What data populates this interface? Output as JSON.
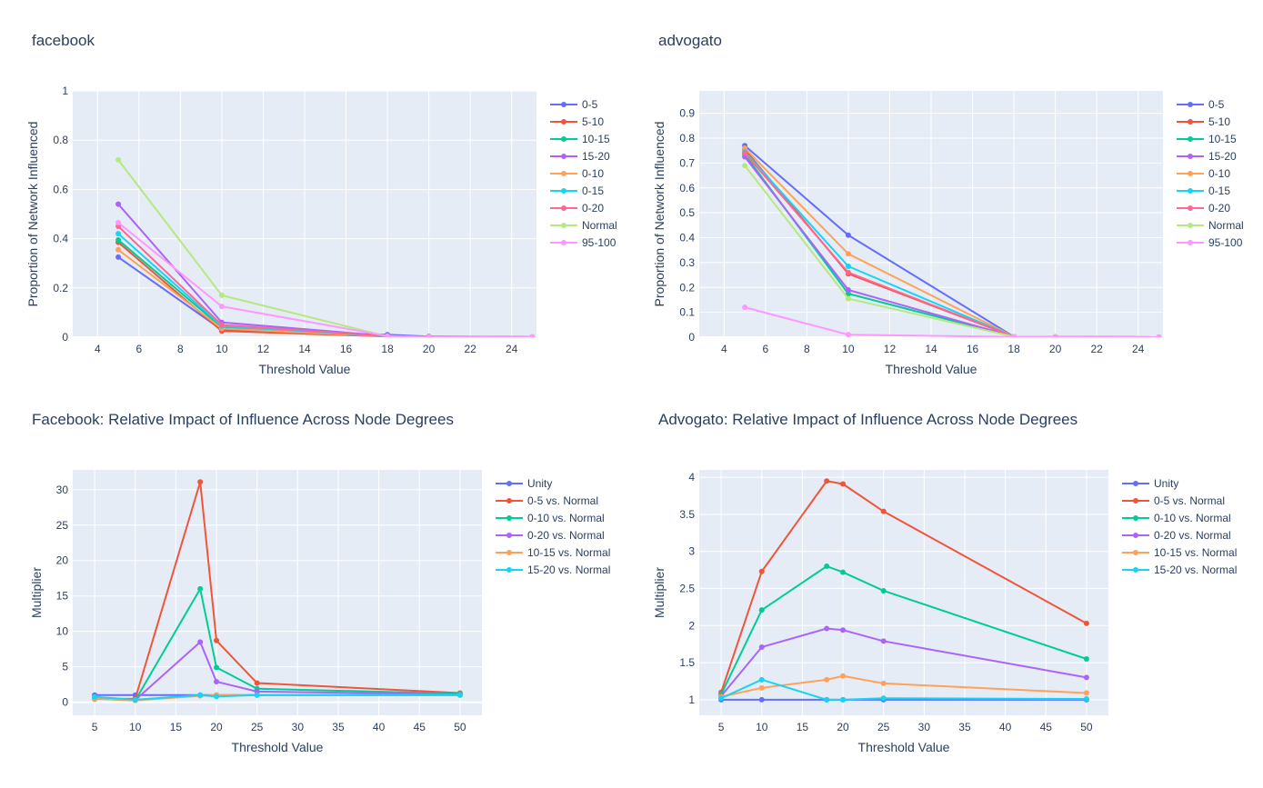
{
  "chart_data": [
    {
      "type": "line",
      "title": "facebook",
      "xlabel": "Threshold Value",
      "ylabel": "Proportion of Network Influenced",
      "xlim": [
        2.8,
        25.2
      ],
      "ylim": [
        0,
        1
      ],
      "xticks": [
        4,
        6,
        8,
        10,
        12,
        14,
        16,
        18,
        20,
        22,
        24
      ],
      "yticks": [
        0,
        0.2,
        0.4,
        0.6,
        0.8,
        1
      ],
      "ytick_labels": [
        "0",
        "0.2",
        "0.4",
        "0.6",
        "0.8",
        "1"
      ],
      "grid": true,
      "legend": "right",
      "x": [
        5,
        10,
        18,
        20,
        25
      ],
      "series": [
        {
          "name": "0-5",
          "color": "#636efa",
          "values": [
            0.325,
            0.03,
            0.01,
            0.003,
            0.001
          ]
        },
        {
          "name": "5-10",
          "color": "#EF553B",
          "values": [
            0.385,
            0.025,
            0.003,
            0.001,
            0.0
          ]
        },
        {
          "name": "10-15",
          "color": "#00cc96",
          "values": [
            0.395,
            0.04,
            0.003,
            0.001,
            0.0
          ]
        },
        {
          "name": "15-20",
          "color": "#ab63fa",
          "values": [
            0.54,
            0.06,
            0.005,
            0.001,
            0.0
          ]
        },
        {
          "name": "0-10",
          "color": "#FFA15A",
          "values": [
            0.355,
            0.035,
            0.003,
            0.001,
            0.0
          ]
        },
        {
          "name": "0-15",
          "color": "#19d3f3",
          "values": [
            0.42,
            0.045,
            0.003,
            0.001,
            0.0
          ]
        },
        {
          "name": "0-20",
          "color": "#FF6692",
          "values": [
            0.45,
            0.05,
            0.004,
            0.001,
            0.0
          ]
        },
        {
          "name": "Normal",
          "color": "#B6E880",
          "values": [
            0.72,
            0.17,
            0.003,
            0.001,
            0.0
          ]
        },
        {
          "name": "95-100",
          "color": "#FF97FF",
          "values": [
            0.465,
            0.125,
            0.005,
            0.001,
            0.0
          ]
        }
      ]
    },
    {
      "type": "line",
      "title": "advogato",
      "xlabel": "Threshold Value",
      "ylabel": "Proportion of Network Influenced",
      "xlim": [
        2.8,
        25.2
      ],
      "ylim": [
        0,
        0.99
      ],
      "xticks": [
        4,
        6,
        8,
        10,
        12,
        14,
        16,
        18,
        20,
        22,
        24
      ],
      "yticks": [
        0,
        0.1,
        0.2,
        0.3,
        0.4,
        0.5,
        0.6,
        0.7,
        0.8,
        0.9
      ],
      "ytick_labels": [
        "0",
        "0.1",
        "0.2",
        "0.3",
        "0.4",
        "0.5",
        "0.6",
        "0.7",
        "0.8",
        "0.9"
      ],
      "grid": true,
      "legend": "right",
      "x": [
        5,
        10,
        18,
        20,
        25
      ],
      "series": [
        {
          "name": "0-5",
          "color": "#636efa",
          "values": [
            0.77,
            0.41,
            0.002,
            0.001,
            0.0
          ]
        },
        {
          "name": "5-10",
          "color": "#EF553B",
          "values": [
            0.755,
            0.255,
            0.002,
            0.001,
            0.0
          ]
        },
        {
          "name": "10-15",
          "color": "#00cc96",
          "values": [
            0.735,
            0.175,
            0.002,
            0.001,
            0.0
          ]
        },
        {
          "name": "15-20",
          "color": "#ab63fa",
          "values": [
            0.725,
            0.19,
            0.002,
            0.001,
            0.0
          ]
        },
        {
          "name": "0-10",
          "color": "#FFA15A",
          "values": [
            0.76,
            0.335,
            0.002,
            0.001,
            0.0
          ]
        },
        {
          "name": "0-15",
          "color": "#19d3f3",
          "values": [
            0.745,
            0.285,
            0.002,
            0.001,
            0.0
          ]
        },
        {
          "name": "0-20",
          "color": "#FF6692",
          "values": [
            0.74,
            0.26,
            0.002,
            0.001,
            0.0
          ]
        },
        {
          "name": "Normal",
          "color": "#B6E880",
          "values": [
            0.69,
            0.155,
            0.002,
            0.001,
            0.0
          ]
        },
        {
          "name": "95-100",
          "color": "#FF97FF",
          "values": [
            0.12,
            0.01,
            0.001,
            0.0,
            0.0
          ]
        }
      ]
    },
    {
      "type": "line",
      "title": "Facebook: Relative Impact of Influence Across Node Degrees",
      "xlabel": "Threshold Value",
      "ylabel": "Multiplier",
      "xlim": [
        2.3,
        52.7
      ],
      "ylim": [
        -1.85,
        32.8
      ],
      "xticks": [
        5,
        10,
        15,
        20,
        25,
        30,
        35,
        40,
        45,
        50
      ],
      "yticks": [
        0,
        5,
        10,
        15,
        20,
        25,
        30
      ],
      "ytick_labels": [
        "0",
        "5",
        "10",
        "15",
        "20",
        "25",
        "30"
      ],
      "grid": true,
      "legend": "right",
      "x": [
        5,
        10,
        18,
        20,
        25,
        50
      ],
      "series": [
        {
          "name": "Unity",
          "color": "#636efa",
          "values": [
            1,
            1,
            1,
            1,
            1,
            1
          ]
        },
        {
          "name": "0-5 vs. Normal",
          "color": "#EF553B",
          "values": [
            0.45,
            0.5,
            31.1,
            8.7,
            2.7,
            1.3
          ]
        },
        {
          "name": "0-10 vs. Normal",
          "color": "#00cc96",
          "values": [
            0.5,
            0.25,
            16.0,
            4.9,
            1.9,
            1.2
          ]
        },
        {
          "name": "0-20 vs. Normal",
          "color": "#ab63fa",
          "values": [
            0.6,
            0.3,
            8.5,
            2.9,
            1.5,
            1.1
          ]
        },
        {
          "name": "10-15 vs. Normal",
          "color": "#FFA15A",
          "values": [
            0.5,
            0.25,
            0.9,
            1.0,
            1.0,
            1.0
          ]
        },
        {
          "name": "15-20 vs. Normal",
          "color": "#19d3f3",
          "values": [
            0.75,
            0.35,
            1.0,
            0.8,
            1.0,
            1.0
          ]
        }
      ]
    },
    {
      "type": "line",
      "title": "Advogato: Relative Impact of Influence Across Node Degrees",
      "xlabel": "Threshold Value",
      "ylabel": "Multiplier",
      "xlim": [
        2.3,
        52.7
      ],
      "ylim": [
        0.79,
        4.1
      ],
      "xticks": [
        5,
        10,
        15,
        20,
        25,
        30,
        35,
        40,
        45,
        50
      ],
      "yticks": [
        1,
        1.5,
        2,
        2.5,
        3,
        3.5,
        4
      ],
      "ytick_labels": [
        "1",
        "1.5",
        "2",
        "2.5",
        "3",
        "3.5",
        "4"
      ],
      "grid": true,
      "legend": "right",
      "x": [
        5,
        10,
        18,
        20,
        25,
        50
      ],
      "series": [
        {
          "name": "Unity",
          "color": "#636efa",
          "values": [
            1,
            1,
            1,
            1,
            1,
            1
          ]
        },
        {
          "name": "0-5 vs. Normal",
          "color": "#EF553B",
          "values": [
            1.1,
            2.73,
            3.95,
            3.91,
            3.54,
            2.03
          ]
        },
        {
          "name": "0-10 vs. Normal",
          "color": "#00cc96",
          "values": [
            1.07,
            2.21,
            2.8,
            2.72,
            2.47,
            1.55
          ]
        },
        {
          "name": "0-20 vs. Normal",
          "color": "#ab63fa",
          "values": [
            1.05,
            1.71,
            1.96,
            1.94,
            1.79,
            1.3
          ]
        },
        {
          "name": "10-15 vs. Normal",
          "color": "#FFA15A",
          "values": [
            1.04,
            1.16,
            1.27,
            1.32,
            1.22,
            1.09
          ]
        },
        {
          "name": "15-20 vs. Normal",
          "color": "#19d3f3",
          "values": [
            1.02,
            1.27,
            1.0,
            1.0,
            1.02,
            1.01
          ]
        }
      ]
    }
  ]
}
